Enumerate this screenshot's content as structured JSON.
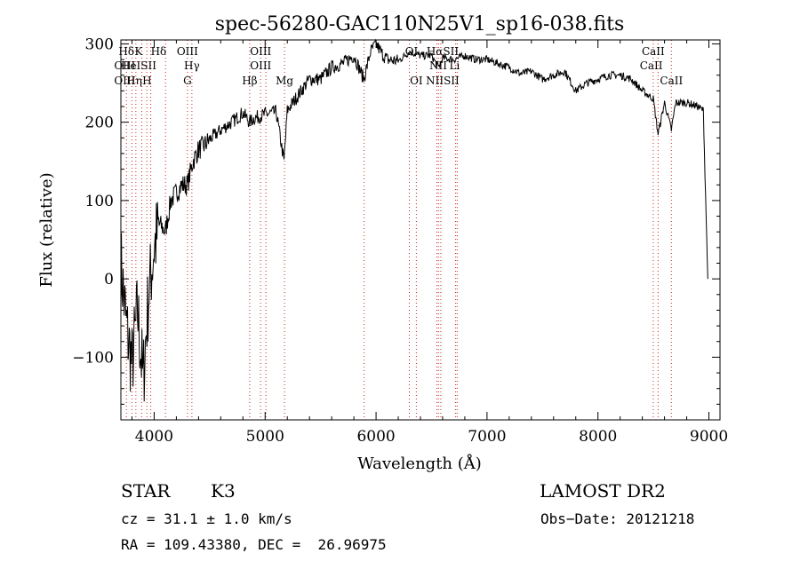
{
  "chart_data": {
    "type": "line",
    "title": "spec-56280-GAC110N25V1_sp16-038.fits",
    "xlabel": "Wavelength (Å)",
    "ylabel": "Flux (relative)",
    "xlim": [
      3700,
      9100
    ],
    "ylim": [
      -180,
      305
    ],
    "xticks": [
      4000,
      5000,
      6000,
      7000,
      8000,
      9000
    ],
    "yticks": [
      -100,
      0,
      100,
      200,
      300
    ],
    "xtick_labels": [
      "4000",
      "5000",
      "6000",
      "7000",
      "8000",
      "9000"
    ],
    "ytick_labels": [
      "−100",
      "0",
      "100",
      "200",
      "300"
    ],
    "series": [
      {
        "name": "flux",
        "x": [
          3700,
          3750,
          3800,
          3850,
          3900,
          3950,
          4000,
          4050,
          4100,
          4150,
          4200,
          4250,
          4300,
          4350,
          4400,
          4450,
          4500,
          4600,
          4700,
          4800,
          4860,
          4900,
          5000,
          5100,
          5170,
          5200,
          5300,
          5400,
          5500,
          5600,
          5700,
          5800,
          5890,
          5950,
          6000,
          6050,
          6100,
          6200,
          6300,
          6400,
          6500,
          6563,
          6600,
          6700,
          6800,
          6900,
          7000,
          7100,
          7200,
          7300,
          7400,
          7500,
          7600,
          7700,
          7800,
          7900,
          8000,
          8100,
          8200,
          8300,
          8400,
          8498,
          8542,
          8600,
          8662,
          8700,
          8800,
          8900,
          8950,
          8990
        ],
        "y": [
          20,
          -60,
          -110,
          -40,
          -130,
          -20,
          40,
          70,
          60,
          100,
          110,
          120,
          120,
          150,
          165,
          170,
          178,
          190,
          200,
          212,
          200,
          205,
          210,
          213,
          150,
          215,
          235,
          255,
          255,
          270,
          275,
          285,
          255,
          290,
          300,
          288,
          280,
          278,
          290,
          285,
          285,
          270,
          282,
          280,
          285,
          280,
          280,
          275,
          270,
          262,
          265,
          255,
          260,
          265,
          240,
          250,
          255,
          260,
          260,
          255,
          240,
          230,
          185,
          225,
          190,
          225,
          225,
          220,
          215,
          0
        ]
      }
    ],
    "spectral_lines": [
      {
        "label": "Hδ",
        "x": 3750,
        "row": 1
      },
      {
        "label": "K",
        "x": 3860,
        "row": 1
      },
      {
        "label": "Hδ",
        "x": 4040,
        "row": 1
      },
      {
        "label": "OIII",
        "x": 4300,
        "row": 1
      },
      {
        "label": "OIII",
        "x": 4960,
        "row": 1
      },
      {
        "label": "OI",
        "x": 6320,
        "row": 1
      },
      {
        "label": "HαSII",
        "x": 6600,
        "row": 1
      },
      {
        "label": "CaII",
        "x": 8498,
        "row": 1
      },
      {
        "label": "OIII",
        "x": 3735,
        "row": 2
      },
      {
        "label": "HeISII",
        "x": 3860,
        "row": 2
      },
      {
        "label": "Hγ",
        "x": 4340,
        "row": 2
      },
      {
        "label": "OIII",
        "x": 4960,
        "row": 2
      },
      {
        "label": "NII",
        "x": 6560,
        "row": 2
      },
      {
        "label": "Li",
        "x": 6708,
        "row": 2
      },
      {
        "label": "CaII",
        "x": 8480,
        "row": 2
      },
      {
        "label": "OIII",
        "x": 3735,
        "row": 3
      },
      {
        "label": "Hη",
        "x": 3820,
        "row": 3
      },
      {
        "label": "H",
        "x": 3935,
        "row": 3
      },
      {
        "label": "G",
        "x": 4300,
        "row": 3
      },
      {
        "label": "Hβ",
        "x": 4861,
        "row": 3
      },
      {
        "label": "Mg",
        "x": 5175,
        "row": 3
      },
      {
        "label": "OI",
        "x": 6363,
        "row": 3
      },
      {
        "label": "NIISII",
        "x": 6600,
        "row": 3
      },
      {
        "label": "CaII",
        "x": 8662,
        "row": 3
      }
    ],
    "dotted_line_positions": [
      3750,
      3800,
      3835,
      3889,
      3934,
      3969,
      4102,
      4300,
      4340,
      4861,
      4959,
      5007,
      5175,
      5893,
      6300,
      6363,
      6548,
      6563,
      6584,
      6717,
      6731,
      8498,
      8542,
      8662
    ],
    "legend": "none",
    "grid": false
  },
  "info": {
    "class_label": "STAR",
    "subclass": "K3",
    "survey": "LAMOST DR2",
    "cz": "cz = 31.1 ± 1.0 km/s",
    "obs_date": "Obs−Date: 20121218",
    "coords": "RA = 109.43380, DEC =  26.96975"
  }
}
